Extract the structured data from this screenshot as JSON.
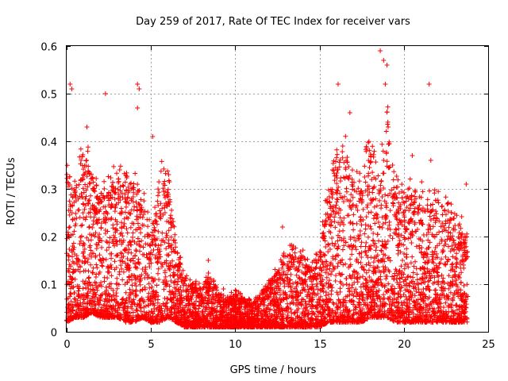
{
  "chart_data": {
    "type": "scatter",
    "title": "Day 259 of 2017, Rate Of TEC Index for receiver vars",
    "xlabel": "GPS time / hours",
    "ylabel": "ROTI / TECUs",
    "xlim": [
      0,
      25
    ],
    "ylim": [
      0,
      0.6
    ],
    "x_ticks": [
      "0",
      "5",
      "10",
      "15",
      "20",
      "25"
    ],
    "y_ticks": [
      "0",
      "0.1",
      "0.2",
      "0.3",
      "0.4",
      "0.5",
      "0.6"
    ],
    "grid": true,
    "marker": "+",
    "color": "#ff0000",
    "envelope_description": "Dense scatter of ROTI samples over 0–23.8 h; values shown as upper envelope, lower envelope and notable outliers",
    "envelope_x": [
      0,
      0.5,
      1,
      1.5,
      2,
      2.5,
      3,
      3.5,
      4,
      4.5,
      5,
      5.5,
      6,
      6.5,
      7,
      7.5,
      8,
      8.5,
      9,
      9.5,
      10,
      10.5,
      11,
      11.5,
      12,
      12.5,
      13,
      13.5,
      14,
      14.5,
      15,
      15.5,
      16,
      16.5,
      17,
      17.5,
      18,
      18.5,
      19,
      19.5,
      20,
      20.5,
      21,
      21.5,
      22,
      22.5,
      23,
      23.5,
      23.8
    ],
    "envelope_upper": [
      0.33,
      0.3,
      0.38,
      0.33,
      0.28,
      0.3,
      0.33,
      0.3,
      0.33,
      0.28,
      0.2,
      0.33,
      0.32,
      0.18,
      0.11,
      0.1,
      0.09,
      0.12,
      0.08,
      0.07,
      0.08,
      0.07,
      0.06,
      0.08,
      0.1,
      0.13,
      0.16,
      0.18,
      0.16,
      0.14,
      0.16,
      0.3,
      0.35,
      0.38,
      0.33,
      0.3,
      0.4,
      0.3,
      0.45,
      0.3,
      0.28,
      0.3,
      0.29,
      0.27,
      0.28,
      0.27,
      0.24,
      0.22,
      0.2
    ],
    "envelope_lower": [
      0.02,
      0.03,
      0.03,
      0.04,
      0.03,
      0.03,
      0.03,
      0.02,
      0.02,
      0.03,
      0.02,
      0.02,
      0.03,
      0.02,
      0.01,
      0.01,
      0.01,
      0.01,
      0.01,
      0.01,
      0.01,
      0.01,
      0.01,
      0.01,
      0.01,
      0.01,
      0.01,
      0.01,
      0.01,
      0.01,
      0.01,
      0.02,
      0.02,
      0.02,
      0.02,
      0.02,
      0.03,
      0.03,
      0.03,
      0.02,
      0.02,
      0.02,
      0.02,
      0.02,
      0.02,
      0.02,
      0.02,
      0.02,
      0.02
    ],
    "outliers_x": [
      0.2,
      0.3,
      1.2,
      2.3,
      4.2,
      4.3,
      4.2,
      5.1,
      12.8,
      16.1,
      16.8,
      18.6,
      18.8,
      19.0,
      18.9,
      21.5,
      21.6,
      20.5,
      23.7,
      9.3,
      8.4
    ],
    "outliers_y": [
      0.52,
      0.51,
      0.43,
      0.5,
      0.52,
      0.51,
      0.47,
      0.41,
      0.22,
      0.52,
      0.46,
      0.59,
      0.57,
      0.56,
      0.52,
      0.52,
      0.36,
      0.37,
      0.31,
      0.09,
      0.15
    ]
  }
}
